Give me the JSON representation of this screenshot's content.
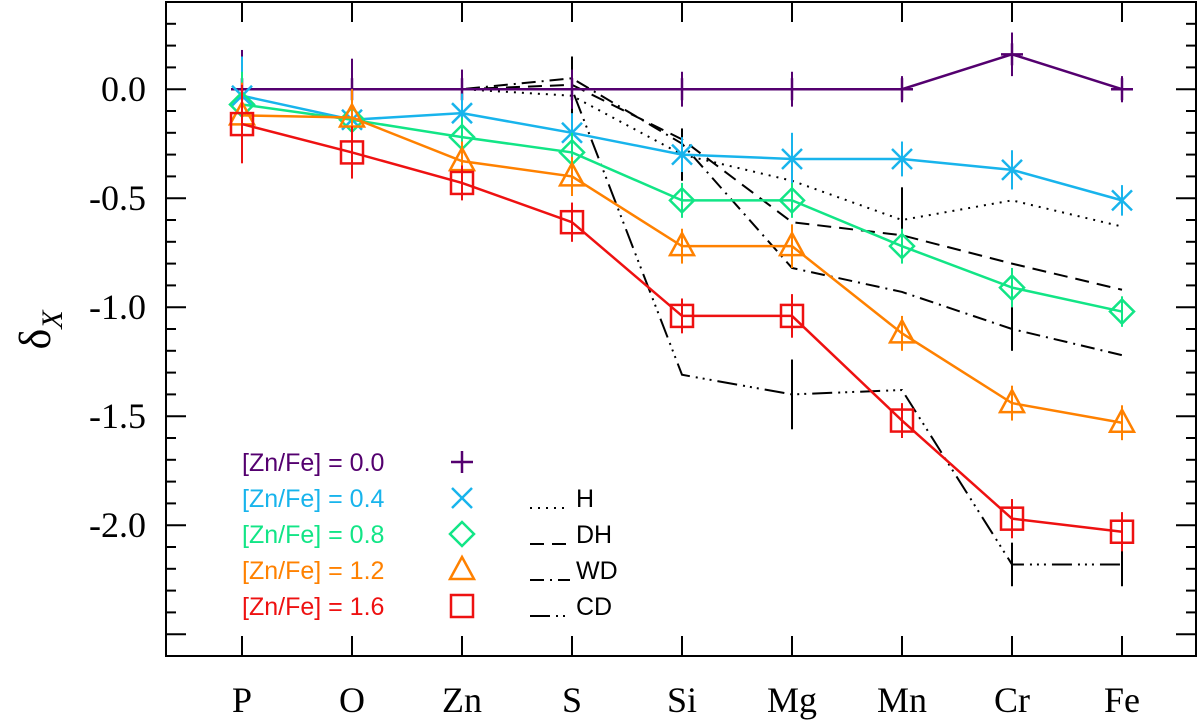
{
  "chart_data": {
    "type": "line",
    "categories": [
      "P",
      "O",
      "Zn",
      "S",
      "Si",
      "Mg",
      "Mn",
      "Cr",
      "Fe"
    ],
    "ylabel": "δ",
    "ylabel_sub": "X",
    "ylim": [
      -2.6,
      0.4
    ],
    "yticks": [
      0.0,
      -0.5,
      -1.0,
      -1.5,
      -2.0
    ],
    "ytick_labels": [
      "0.0",
      "-0.5",
      "-1.0",
      "-1.5",
      "-2.0"
    ],
    "series": [
      {
        "name": "[Zn/Fe] = 0.0",
        "color": "#54006f",
        "marker": "plus",
        "values": [
          0.0,
          0.0,
          0.0,
          0.0,
          0.0,
          0.0,
          0.0,
          0.16,
          0.0
        ],
        "errors": [
          0.18,
          0.14,
          0.09,
          0.09,
          0.08,
          0.08,
          0.06,
          0.1,
          0.06
        ]
      },
      {
        "name": "[Zn/Fe] = 0.4",
        "color": "#18b4ec",
        "marker": "x",
        "values": [
          -0.03,
          -0.14,
          -0.11,
          -0.2,
          -0.3,
          -0.32,
          -0.32,
          -0.37,
          -0.51
        ],
        "errors": [
          0.18,
          0.14,
          0.09,
          0.09,
          0.08,
          0.12,
          0.08,
          0.09,
          0.07
        ]
      },
      {
        "name": "[Zn/Fe] = 0.8",
        "color": "#12e586",
        "marker": "diamond",
        "values": [
          -0.07,
          -0.14,
          -0.22,
          -0.29,
          -0.51,
          -0.51,
          -0.72,
          -0.91,
          -1.02
        ],
        "errors": [
          0.15,
          0.13,
          0.09,
          0.09,
          0.08,
          0.08,
          0.08,
          0.09,
          0.07
        ]
      },
      {
        "name": "[Zn/Fe] = 1.2",
        "color": "#ff8100",
        "marker": "triangle",
        "values": [
          -0.12,
          -0.13,
          -0.33,
          -0.4,
          -0.72,
          -0.72,
          -1.12,
          -1.44,
          -1.53
        ],
        "errors": [
          0.15,
          0.13,
          0.09,
          0.09,
          0.08,
          0.1,
          0.08,
          0.08,
          0.08
        ]
      },
      {
        "name": "[Zn/Fe] = 1.6",
        "color": "#ee1111",
        "marker": "square",
        "values": [
          -0.16,
          -0.29,
          -0.43,
          -0.61,
          -1.04,
          -1.04,
          -1.52,
          -1.97,
          -2.03
        ],
        "errors": [
          0.18,
          0.12,
          0.08,
          0.09,
          0.08,
          0.1,
          0.08,
          0.09,
          0.09
        ]
      }
    ],
    "reference_lines": [
      {
        "name": "H",
        "style": "dotted",
        "values": [
          0.0,
          0.0,
          0.0,
          -0.03,
          -0.3,
          -0.42,
          -0.6,
          -0.51,
          -0.63
        ],
        "errors": [
          0.0,
          0.0,
          0.0,
          0.1,
          0.12,
          0.0,
          0.15,
          0.0,
          0.0
        ]
      },
      {
        "name": "DH",
        "style": "dashed",
        "values": [
          0.0,
          0.0,
          0.0,
          0.02,
          -0.23,
          -0.61,
          -0.67,
          -0.8,
          -0.92
        ],
        "errors": [
          0.0,
          0.0,
          0.0,
          0.0,
          0.0,
          0.0,
          0.0,
          0.0,
          0.0
        ]
      },
      {
        "name": "WD",
        "style": "dashdot",
        "values": [
          0.0,
          0.0,
          0.0,
          0.05,
          -0.25,
          -0.82,
          -0.93,
          -1.1,
          -1.22
        ],
        "errors": [
          0.0,
          0.0,
          0.0,
          0.1,
          0.0,
          0.0,
          0.0,
          0.1,
          0.0
        ]
      },
      {
        "name": "CD",
        "style": "dashdotdotdot",
        "values": [
          0.0,
          0.0,
          0.0,
          0.0,
          -1.31,
          -1.4,
          -1.38,
          -2.18,
          -2.18
        ],
        "errors": [
          0.0,
          0.0,
          0.0,
          0.1,
          0.0,
          0.16,
          0.0,
          0.1,
          0.1
        ]
      }
    ]
  }
}
